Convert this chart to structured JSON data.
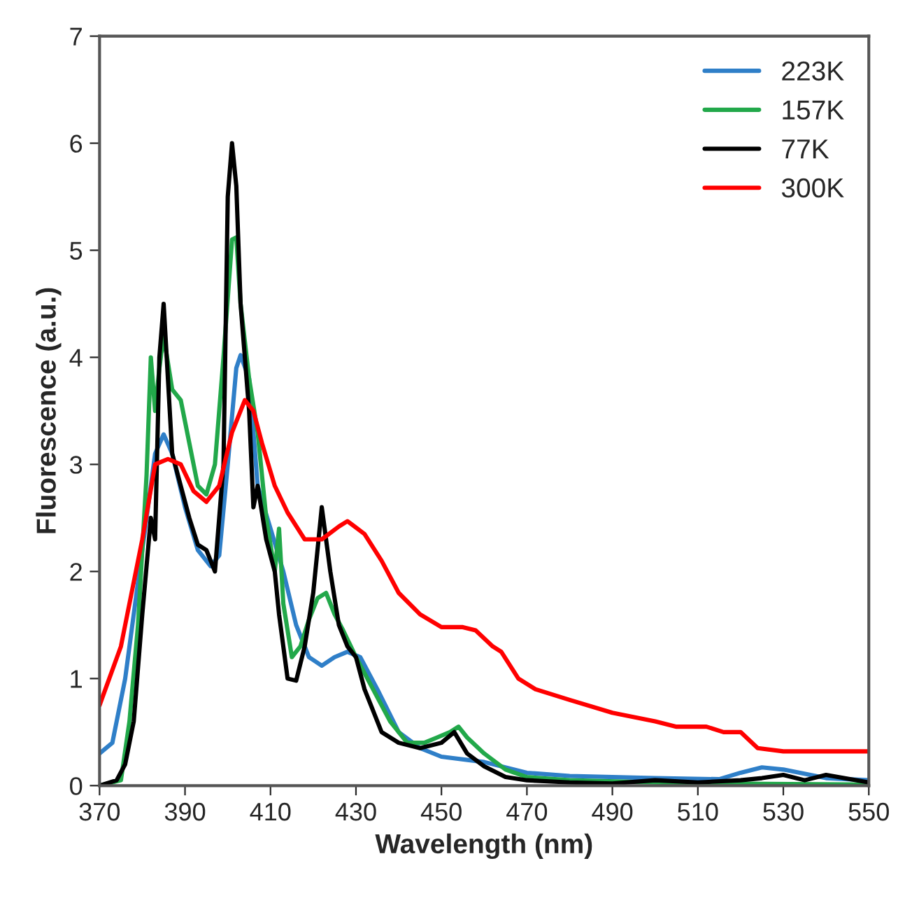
{
  "chart_data": {
    "type": "line",
    "xlabel": "Wavelength (nm)",
    "ylabel": "Fluorescence (a.u.)",
    "xlim": [
      370,
      550
    ],
    "xticks": [
      370,
      390,
      410,
      430,
      450,
      470,
      490,
      510,
      530,
      550
    ],
    "ylim": [
      0,
      7
    ],
    "yticks": [
      0,
      1,
      2,
      3,
      4,
      5,
      6,
      7
    ],
    "grid": false,
    "legend": "top right",
    "marker": "none",
    "line_style": "solid",
    "series": [
      {
        "name": "223K",
        "color": "#2f7fc8",
        "x": [
          370,
          373,
          376,
          380,
          383,
          385,
          387,
          390,
          393,
          396,
          398,
          400,
          402,
          403,
          405,
          407,
          410,
          413,
          416,
          419,
          422,
          425,
          428,
          431,
          435,
          440,
          445,
          450,
          460,
          470,
          480,
          500,
          515,
          520,
          525,
          530,
          540,
          550
        ],
        "values": [
          0.3,
          0.4,
          1.0,
          2.2,
          3.1,
          3.28,
          3.1,
          2.6,
          2.2,
          2.05,
          2.15,
          3.0,
          3.9,
          4.02,
          3.8,
          2.8,
          2.4,
          2.0,
          1.5,
          1.2,
          1.12,
          1.2,
          1.25,
          1.2,
          0.9,
          0.5,
          0.35,
          0.27,
          0.22,
          0.12,
          0.09,
          0.07,
          0.06,
          0.12,
          0.17,
          0.15,
          0.07,
          0.05
        ]
      },
      {
        "name": "157K",
        "color": "#22a84a",
        "x": [
          370,
          375,
          377,
          379,
          381,
          382,
          383,
          384,
          385,
          387,
          389,
          391,
          393,
          395,
          397,
          399,
          401,
          402,
          403,
          405,
          407,
          409,
          411,
          412,
          413,
          415,
          417,
          419,
          421,
          423,
          425,
          427,
          430,
          434,
          438,
          442,
          446,
          449,
          452,
          454,
          456,
          460,
          465,
          470,
          480,
          500,
          510,
          550
        ],
        "values": [
          0,
          0.05,
          0.6,
          1.5,
          2.9,
          4.0,
          3.5,
          3.9,
          4.2,
          3.7,
          3.6,
          3.2,
          2.8,
          2.72,
          3.0,
          4.0,
          5.1,
          5.12,
          4.5,
          3.8,
          3.3,
          2.5,
          2.0,
          2.4,
          1.7,
          1.2,
          1.3,
          1.55,
          1.75,
          1.8,
          1.6,
          1.45,
          1.2,
          0.9,
          0.6,
          0.4,
          0.4,
          0.45,
          0.5,
          0.55,
          0.45,
          0.3,
          0.15,
          0.08,
          0.05,
          0.03,
          0.02,
          0.01
        ]
      },
      {
        "name": "77K",
        "color": "#000000",
        "x": [
          370,
          374,
          376,
          378,
          380,
          382,
          383,
          384,
          385,
          386,
          387,
          389,
          391,
          393,
          395,
          397,
          399,
          400,
          401,
          402,
          403,
          405,
          406,
          407,
          409,
          411,
          412,
          414,
          416,
          418,
          420,
          422,
          424,
          426,
          428,
          430,
          432,
          434,
          436,
          440,
          445,
          450,
          453,
          456,
          460,
          465,
          470,
          480,
          490,
          500,
          510,
          520,
          525,
          530,
          535,
          540,
          550
        ],
        "values": [
          0,
          0.05,
          0.2,
          0.6,
          1.6,
          2.5,
          2.3,
          4.0,
          4.5,
          3.8,
          3.1,
          2.8,
          2.5,
          2.25,
          2.2,
          2.0,
          3.0,
          5.5,
          6.0,
          5.6,
          4.5,
          3.5,
          2.6,
          2.8,
          2.3,
          2.0,
          1.6,
          1.0,
          0.98,
          1.3,
          1.8,
          2.6,
          2.0,
          1.5,
          1.3,
          1.2,
          0.9,
          0.7,
          0.5,
          0.4,
          0.35,
          0.4,
          0.5,
          0.3,
          0.18,
          0.08,
          0.05,
          0.03,
          0.02,
          0.05,
          0.03,
          0.05,
          0.07,
          0.1,
          0.05,
          0.1,
          0.03
        ]
      },
      {
        "name": "300K",
        "color": "#ff0000",
        "x": [
          370,
          375,
          380,
          383,
          386,
          389,
          392,
          395,
          398,
          401,
          404,
          406,
          408,
          411,
          414,
          418,
          422,
          426,
          428,
          432,
          436,
          440,
          445,
          450,
          455,
          458,
          462,
          464,
          468,
          472,
          480,
          490,
          500,
          505,
          512,
          516,
          520,
          524,
          530,
          550
        ],
        "values": [
          0.75,
          1.3,
          2.3,
          3.0,
          3.05,
          3.0,
          2.75,
          2.65,
          2.8,
          3.3,
          3.6,
          3.5,
          3.2,
          2.8,
          2.55,
          2.3,
          2.3,
          2.42,
          2.47,
          2.35,
          2.1,
          1.8,
          1.6,
          1.48,
          1.48,
          1.45,
          1.3,
          1.25,
          1.0,
          0.9,
          0.8,
          0.68,
          0.6,
          0.55,
          0.55,
          0.5,
          0.5,
          0.35,
          0.32,
          0.32
        ]
      }
    ]
  }
}
